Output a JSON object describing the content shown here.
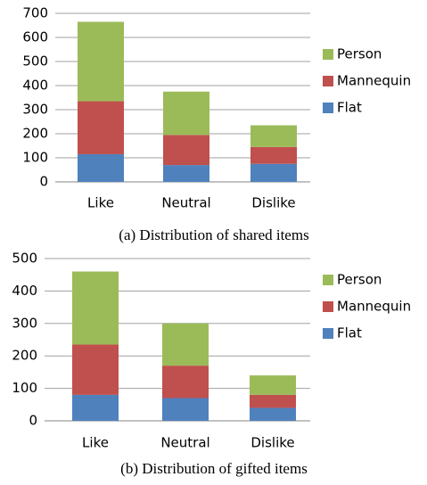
{
  "chart_data": [
    {
      "type": "stacked_bar",
      "caption": "(a) Distribution of shared items",
      "categories": [
        "Like",
        "Neutral",
        "Dislike"
      ],
      "series": [
        {
          "name": "Flat",
          "color": "#4f81bd",
          "values": [
            115,
            70,
            75
          ]
        },
        {
          "name": "Mannequin",
          "color": "#c0504d",
          "values": [
            220,
            125,
            70
          ]
        },
        {
          "name": "Person",
          "color": "#9bbb59",
          "values": [
            330,
            180,
            90
          ]
        }
      ],
      "ylim": [
        0,
        700
      ],
      "yticks": [
        0,
        100,
        200,
        300,
        400,
        500,
        600,
        700
      ],
      "grid": true,
      "legend": "right"
    },
    {
      "type": "stacked_bar",
      "caption": "(b) Distribution of gifted items",
      "categories": [
        "Like",
        "Neutral",
        "Dislike"
      ],
      "series": [
        {
          "name": "Flat",
          "color": "#4f81bd",
          "values": [
            80,
            70,
            40
          ]
        },
        {
          "name": "Mannequin",
          "color": "#c0504d",
          "values": [
            155,
            100,
            40
          ]
        },
        {
          "name": "Person",
          "color": "#9bbb59",
          "values": [
            225,
            130,
            60
          ]
        }
      ],
      "ylim": [
        0,
        500
      ],
      "yticks": [
        0,
        100,
        200,
        300,
        400,
        500
      ],
      "grid": true,
      "legend": "right"
    }
  ]
}
